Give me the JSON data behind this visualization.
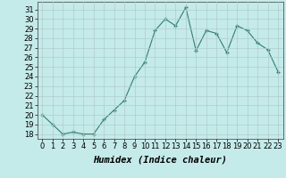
{
  "x": [
    0,
    1,
    2,
    3,
    4,
    5,
    6,
    7,
    8,
    9,
    10,
    11,
    12,
    13,
    14,
    15,
    16,
    17,
    18,
    19,
    20,
    21,
    22,
    23
  ],
  "y": [
    20,
    19,
    18,
    18.2,
    18,
    18,
    19.5,
    20.5,
    21.5,
    24,
    25.5,
    28.8,
    30,
    29.3,
    31.2,
    26.7,
    28.8,
    28.5,
    26.5,
    29.3,
    28.8,
    27.5,
    26.8,
    24.5
  ],
  "line_color": "#2e7f70",
  "marker": "+",
  "marker_size": 3.5,
  "marker_lw": 1.0,
  "bg_color": "#c5eaea",
  "grid_color": "#b0cccc",
  "xlabel": "Humidex (Indice chaleur)",
  "xlabel_fontsize": 7.5,
  "tick_fontsize": 6.0,
  "ylim": [
    17.5,
    31.8
  ],
  "xlim": [
    -0.5,
    23.5
  ],
  "yticks": [
    18,
    19,
    20,
    21,
    22,
    23,
    24,
    25,
    26,
    27,
    28,
    29,
    30,
    31
  ],
  "xticks": [
    0,
    1,
    2,
    3,
    4,
    5,
    6,
    7,
    8,
    9,
    10,
    11,
    12,
    13,
    14,
    15,
    16,
    17,
    18,
    19,
    20,
    21,
    22,
    23
  ]
}
